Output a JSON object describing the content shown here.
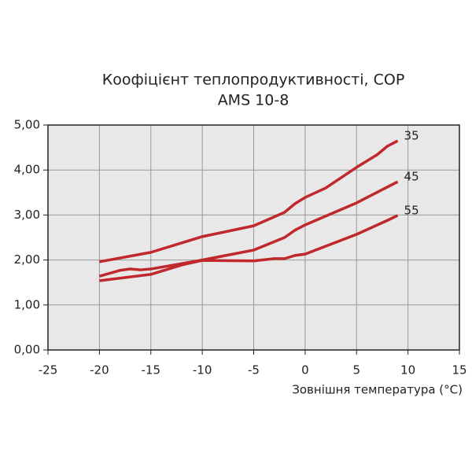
{
  "chart_data": {
    "type": "line",
    "title": "Коофіцієнт теплопродуктивності, COP",
    "subtitle": "AMS 10-8",
    "x_label": "Зовнішня температура (°C)",
    "xlim": [
      -25,
      15
    ],
    "xticks": [
      -25,
      -20,
      -15,
      -10,
      -5,
      0,
      5,
      10,
      15
    ],
    "ylim": [
      0,
      5
    ],
    "yticks": [
      {
        "value": 0,
        "label": "0,00"
      },
      {
        "value": 1,
        "label": "1,00"
      },
      {
        "value": 2,
        "label": "2,00"
      },
      {
        "value": 3,
        "label": "3,00"
      },
      {
        "value": 4,
        "label": "4,00"
      },
      {
        "value": 5,
        "label": "5,00"
      }
    ],
    "grid": true,
    "series": [
      {
        "name": "35",
        "color": "#c0282b",
        "x": [
          -20,
          -15,
          -10,
          -5,
          -2,
          -1,
          0,
          2,
          5,
          7,
          8,
          9
        ],
        "values": [
          1.96,
          2.17,
          2.52,
          2.76,
          3.06,
          3.25,
          3.39,
          3.6,
          4.06,
          4.34,
          4.53,
          4.65
        ]
      },
      {
        "name": "45",
        "color": "#c0282b",
        "x": [
          -20,
          -18,
          -17,
          -16,
          -15,
          -10,
          -5,
          -2,
          -1,
          0,
          5,
          9
        ],
        "values": [
          1.64,
          1.77,
          1.8,
          1.78,
          1.8,
          2.0,
          2.22,
          2.5,
          2.66,
          2.78,
          3.27,
          3.74
        ]
      },
      {
        "name": "55",
        "color": "#c0282b",
        "x": [
          -20,
          -15,
          -12,
          -10,
          -5,
          -3,
          -2,
          -1,
          0,
          5,
          8,
          9
        ],
        "values": [
          1.54,
          1.68,
          1.89,
          1.99,
          1.98,
          2.03,
          2.03,
          2.1,
          2.13,
          2.57,
          2.88,
          2.99
        ]
      }
    ]
  }
}
